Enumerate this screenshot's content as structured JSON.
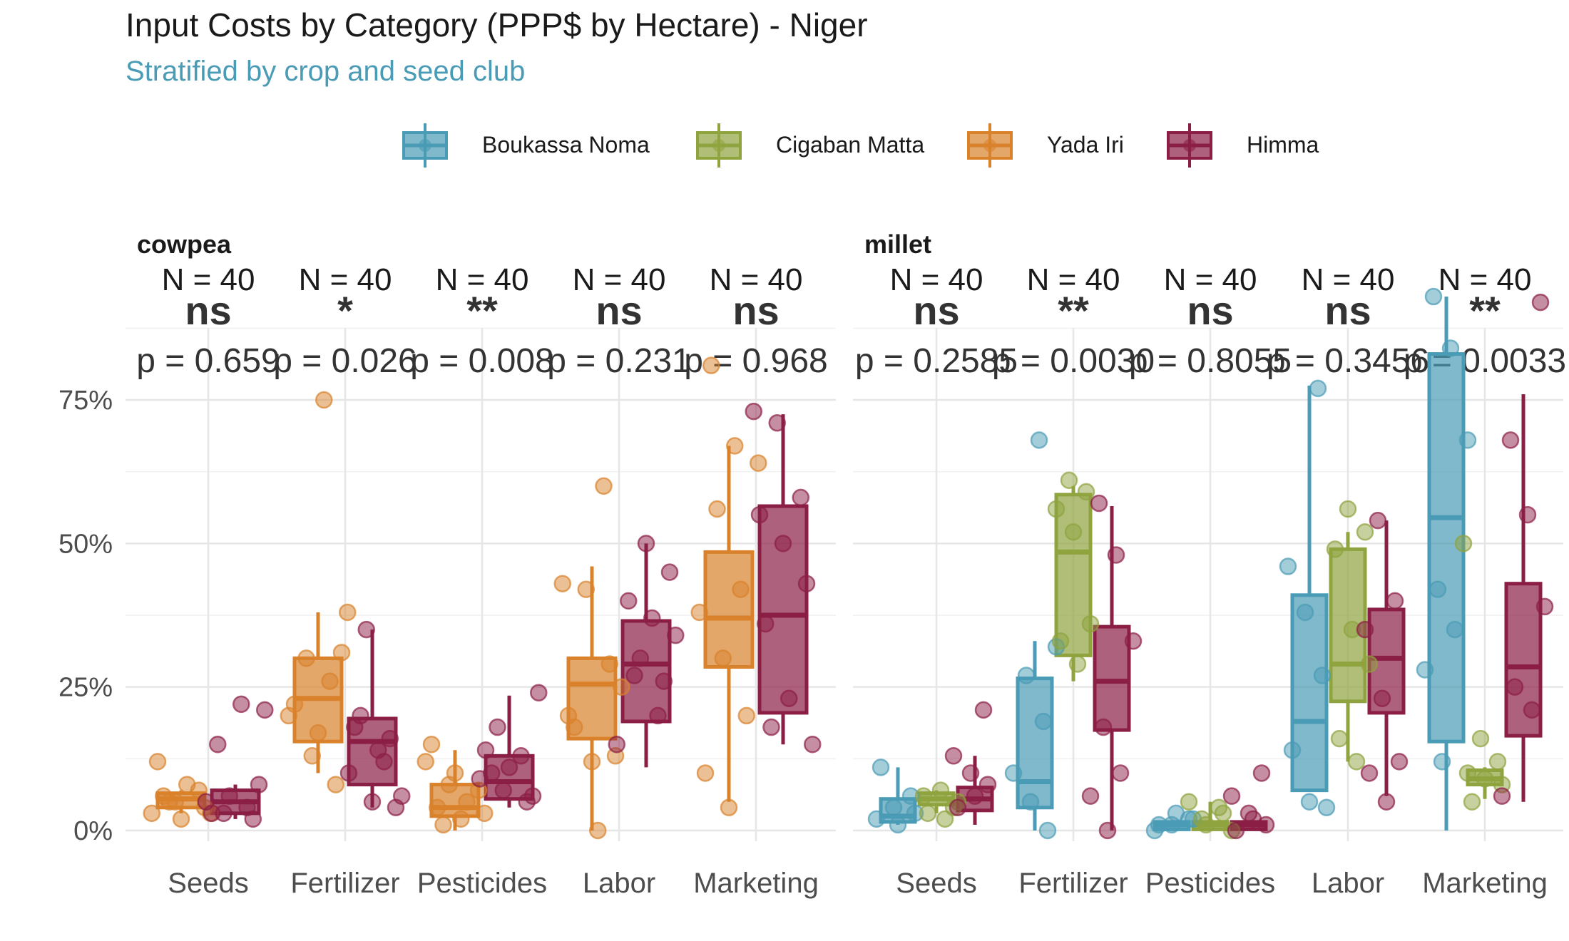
{
  "chart_data": {
    "type": "box",
    "title": "Input Costs by Category (PPP$ by Hectare) - Niger",
    "subtitle": "Stratified by crop and seed club",
    "xlabel": "",
    "ylabel": "",
    "ylim": [
      -0.03,
      0.95
    ],
    "y_ticks": [
      0,
      0.25,
      0.5,
      0.75
    ],
    "y_tick_labels": [
      "0%",
      "25%",
      "50%",
      "75%"
    ],
    "grid": true,
    "legend_position": "top",
    "legend": [
      {
        "name": "Boukassa Noma",
        "color": "#4a9bb5"
      },
      {
        "name": "Cigaban Matta",
        "color": "#8fa33f"
      },
      {
        "name": "Yada Iri",
        "color": "#d9822b"
      },
      {
        "name": "Himma",
        "color": "#8b1e45"
      }
    ],
    "categories": [
      "Seeds",
      "Fertilizer",
      "Pesticides",
      "Labor",
      "Marketing"
    ],
    "panels": [
      {
        "name": "cowpea",
        "groups": [
          "Yada Iri",
          "Himma"
        ],
        "annotations": [
          {
            "n": "N = 40",
            "sig": "ns",
            "p": "p = 0.659"
          },
          {
            "n": "N = 40",
            "sig": "*",
            "p": "p = 0.026"
          },
          {
            "n": "N = 40",
            "sig": "**",
            "p": "p = 0.008"
          },
          {
            "n": "N = 40",
            "sig": "ns",
            "p": "p = 0.231"
          },
          {
            "n": "N = 40",
            "sig": "ns",
            "p": "p = 0.968"
          }
        ],
        "boxes": [
          [
            {
              "group": "Yada Iri",
              "min": 0.03,
              "q1": 0.04,
              "median": 0.055,
              "q3": 0.065,
              "max": 0.07
            },
            {
              "group": "Himma",
              "min": 0.02,
              "q1": 0.03,
              "median": 0.05,
              "q3": 0.07,
              "max": 0.08
            }
          ],
          [
            {
              "group": "Yada Iri",
              "min": 0.1,
              "q1": 0.155,
              "median": 0.23,
              "q3": 0.3,
              "max": 0.38
            },
            {
              "group": "Himma",
              "min": 0.04,
              "q1": 0.08,
              "median": 0.155,
              "q3": 0.195,
              "max": 0.35
            }
          ],
          [
            {
              "group": "Yada Iri",
              "min": 0.0,
              "q1": 0.025,
              "median": 0.04,
              "q3": 0.08,
              "max": 0.14
            },
            {
              "group": "Himma",
              "min": 0.04,
              "q1": 0.055,
              "median": 0.085,
              "q3": 0.13,
              "max": 0.235
            }
          ],
          [
            {
              "group": "Yada Iri",
              "min": 0.0,
              "q1": 0.16,
              "median": 0.255,
              "q3": 0.3,
              "max": 0.46
            },
            {
              "group": "Himma",
              "min": 0.11,
              "q1": 0.19,
              "median": 0.29,
              "q3": 0.365,
              "max": 0.5
            }
          ],
          [
            {
              "group": "Yada Iri",
              "min": 0.05,
              "q1": 0.285,
              "median": 0.37,
              "q3": 0.485,
              "max": 0.67
            },
            {
              "group": "Himma",
              "min": 0.15,
              "q1": 0.205,
              "median": 0.375,
              "q3": 0.565,
              "max": 0.725
            }
          ]
        ],
        "points": [
          [
            [
              [
                0.03,
                0.05,
                0.07,
                0.12,
                0.02,
                0.04,
                0.06,
                0.08,
                0.03,
                0.05
              ],
              [
                0.08,
                0.15,
                0.22,
                0.21,
                0.03,
                0.04,
                0.05,
                0.06,
                0.02,
                0.03
              ]
            ]
          ],
          [
            [
              [
                0.75,
                0.38,
                0.3,
                0.26,
                0.2,
                0.13,
                0.08,
                0.22,
                0.17,
                0.31
              ],
              [
                0.35,
                0.16,
                0.1,
                0.05,
                0.04,
                0.18,
                0.14,
                0.06,
                0.2,
                0.12
              ]
            ]
          ],
          [
            [
              [
                0.15,
                0.1,
                0.07,
                0.04,
                0.02,
                0.03,
                0.01,
                0.05,
                0.12,
                0.08
              ],
              [
                0.24,
                0.18,
                0.13,
                0.09,
                0.07,
                0.05,
                0.14,
                0.11,
                0.06,
                0.1
              ]
            ]
          ],
          [
            [
              [
                0.6,
                0.43,
                0.42,
                0.29,
                0.2,
                0.12,
                0.13,
                0.18,
                0.0,
                0.25
              ],
              [
                0.5,
                0.45,
                0.4,
                0.37,
                0.34,
                0.27,
                0.2,
                0.15,
                0.3,
                0.26
              ]
            ]
          ],
          [
            [
              [
                0.81,
                0.67,
                0.64,
                0.56,
                0.42,
                0.38,
                0.3,
                0.2,
                0.1,
                0.04
              ],
              [
                0.73,
                0.71,
                0.58,
                0.55,
                0.5,
                0.43,
                0.36,
                0.23,
                0.15,
                0.18
              ]
            ]
          ]
        ]
      },
      {
        "name": "millet",
        "groups": [
          "Boukassa Noma",
          "Cigaban Matta",
          "Himma"
        ],
        "annotations": [
          {
            "n": "N = 40",
            "sig": "ns",
            "p": "p = 0.2585"
          },
          {
            "n": "N = 40",
            "sig": "**",
            "p": "p = 0.0030"
          },
          {
            "n": "N = 40",
            "sig": "ns",
            "p": "p = 0.8055"
          },
          {
            "n": "N = 40",
            "sig": "ns",
            "p": "p = 0.3456"
          },
          {
            "n": "N = 40",
            "sig": "**",
            "p": "p = 0.0033"
          }
        ],
        "boxes": [
          [
            {
              "group": "Boukassa Noma",
              "min": 0.01,
              "q1": 0.015,
              "median": 0.025,
              "q3": 0.055,
              "max": 0.11
            },
            {
              "group": "Cigaban Matta",
              "min": 0.03,
              "q1": 0.045,
              "median": 0.055,
              "q3": 0.065,
              "max": 0.07
            },
            {
              "group": "Himma",
              "min": 0.01,
              "q1": 0.035,
              "median": 0.055,
              "q3": 0.075,
              "max": 0.13
            }
          ],
          [
            {
              "group": "Boukassa Noma",
              "min": 0.0,
              "q1": 0.04,
              "median": 0.085,
              "q3": 0.265,
              "max": 0.33
            },
            {
              "group": "Cigaban Matta",
              "min": 0.26,
              "q1": 0.305,
              "median": 0.485,
              "q3": 0.585,
              "max": 0.6
            },
            {
              "group": "Himma",
              "min": 0.0,
              "q1": 0.175,
              "median": 0.26,
              "q3": 0.355,
              "max": 0.565
            }
          ],
          [
            {
              "group": "Boukassa Noma",
              "min": 0.0,
              "q1": 0.002,
              "median": 0.01,
              "q3": 0.015,
              "max": 0.015
            },
            {
              "group": "Cigaban Matta",
              "min": 0.0,
              "q1": 0.002,
              "median": 0.01,
              "q3": 0.015,
              "max": 0.05
            },
            {
              "group": "Himma",
              "min": 0.0,
              "q1": 0.002,
              "median": 0.01,
              "q3": 0.015,
              "max": 0.015
            }
          ],
          [
            {
              "group": "Boukassa Noma",
              "min": 0.07,
              "q1": 0.07,
              "median": 0.19,
              "q3": 0.41,
              "max": 0.775
            },
            {
              "group": "Cigaban Matta",
              "min": 0.12,
              "q1": 0.225,
              "median": 0.29,
              "q3": 0.49,
              "max": 0.52
            },
            {
              "group": "Himma",
              "min": 0.06,
              "q1": 0.205,
              "median": 0.3,
              "q3": 0.385,
              "max": 0.54
            }
          ],
          [
            {
              "group": "Boukassa Noma",
              "min": 0.0,
              "q1": 0.155,
              "median": 0.545,
              "q3": 0.83,
              "max": 0.93
            },
            {
              "group": "Cigaban Matta",
              "min": 0.055,
              "q1": 0.08,
              "median": 0.09,
              "q3": 0.105,
              "max": 0.11
            },
            {
              "group": "Himma",
              "min": 0.05,
              "q1": 0.165,
              "median": 0.285,
              "q3": 0.43,
              "max": 0.76
            }
          ]
        ],
        "points": [
          [
            [
              [
                0.02,
                0.04,
                0.06,
                0.11,
                0.01,
                0.03
              ],
              [
                0.04,
                0.06,
                0.07,
                0.05,
                0.03,
                0.02
              ],
              [
                0.21,
                0.13,
                0.1,
                0.08,
                0.04,
                0.06
              ]
            ]
          ],
          [
            [
              [
                0.68,
                0.32,
                0.27,
                0.19,
                0.1,
                0.05,
                0.0
              ],
              [
                0.61,
                0.59,
                0.56,
                0.52,
                0.36,
                0.33,
                0.29
              ],
              [
                0.57,
                0.48,
                0.33,
                0.18,
                0.1,
                0.06,
                0.0
              ]
            ]
          ],
          [
            [
              [
                0.0,
                0.01,
                0.02,
                0.01,
                0.03,
                0.02
              ],
              [
                0.0,
                0.02,
                0.04,
                0.05,
                0.01,
                0.03
              ],
              [
                0.1,
                0.06,
                0.03,
                0.01,
                0.0,
                0.02
              ]
            ]
          ],
          [
            [
              [
                0.77,
                0.46,
                0.38,
                0.27,
                0.14,
                0.05,
                0.04
              ],
              [
                0.56,
                0.52,
                0.49,
                0.35,
                0.29,
                0.16,
                0.12
              ],
              [
                0.54,
                0.4,
                0.35,
                0.23,
                0.12,
                0.1,
                0.05
              ]
            ]
          ],
          [
            [
              [
                0.93,
                0.84,
                0.68,
                0.42,
                0.35,
                0.28,
                0.12
              ],
              [
                0.5,
                0.16,
                0.12,
                0.1,
                0.09,
                0.08,
                0.05
              ],
              [
                0.92,
                0.68,
                0.55,
                0.39,
                0.25,
                0.21,
                0.06
              ]
            ]
          ]
        ]
      }
    ]
  }
}
